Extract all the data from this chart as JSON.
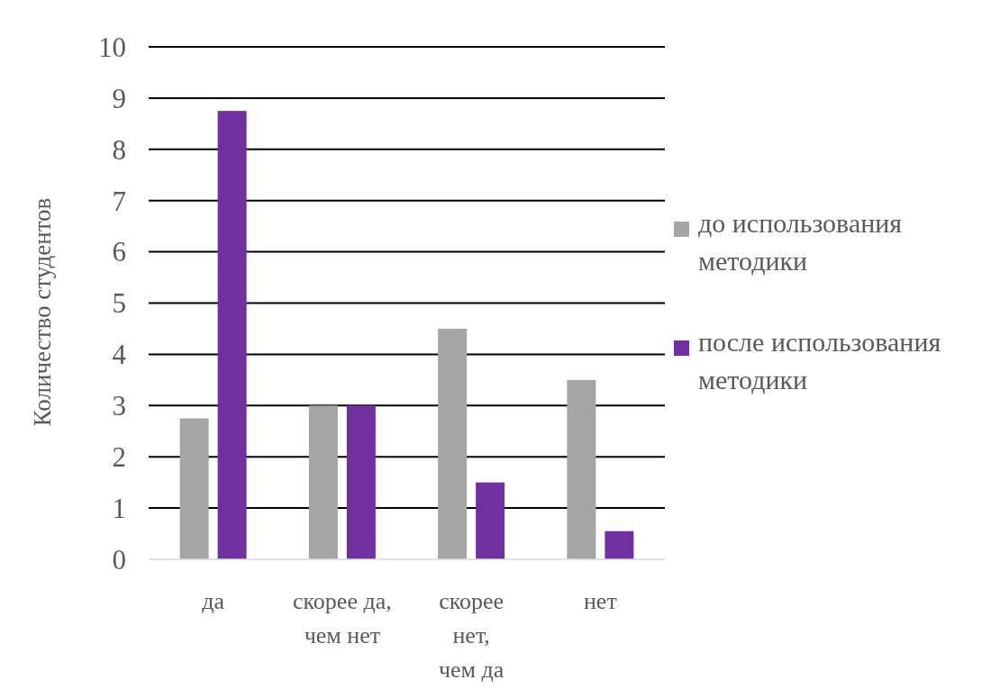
{
  "chart_data": {
    "type": "bar",
    "ylabel": "Количество студентов",
    "categories": [
      "да",
      "скорее да, чем нет",
      "скорее нет, чем да",
      "нет"
    ],
    "series": [
      {
        "name": "до использования методики",
        "color": "#a5a5a5",
        "values": [
          2.75,
          3,
          4.5,
          3.5
        ]
      },
      {
        "name": "после использования методики",
        "color": "#7030a0",
        "values": [
          8.75,
          3,
          1.5,
          0.55
        ]
      }
    ],
    "ylim": [
      0,
      10
    ],
    "yticks": [
      0,
      1,
      2,
      3,
      4,
      5,
      6,
      7,
      8,
      9,
      10
    ],
    "grid": "y",
    "legend": "right"
  }
}
